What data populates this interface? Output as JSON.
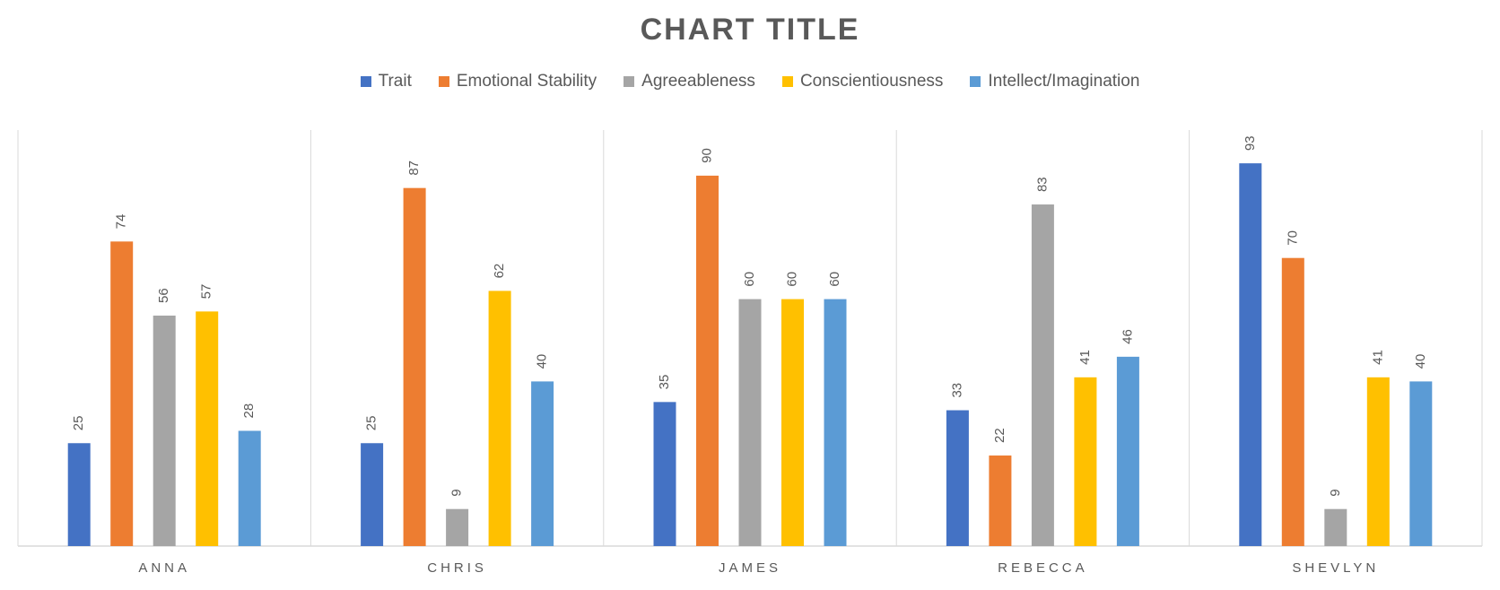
{
  "chart_data": {
    "type": "bar",
    "title": "CHART TITLE",
    "categories": [
      "ANNA",
      "CHRIS",
      "JAMES",
      "REBECCA",
      "SHEVLYN"
    ],
    "series": [
      {
        "name": "Trait",
        "color": "#4472C4",
        "values": [
          25,
          25,
          35,
          33,
          93
        ]
      },
      {
        "name": "Emotional Stability",
        "color": "#ED7D31",
        "values": [
          74,
          87,
          90,
          22,
          70
        ]
      },
      {
        "name": "Agreeableness",
        "color": "#A5A5A5",
        "values": [
          56,
          9,
          60,
          83,
          9
        ]
      },
      {
        "name": "Conscientiousness",
        "color": "#FFC000",
        "values": [
          57,
          62,
          60,
          41,
          41
        ]
      },
      {
        "name": "Intellect/Imagination",
        "color": "#5B9BD5",
        "values": [
          28,
          40,
          60,
          46,
          40
        ]
      }
    ],
    "ylim": [
      0,
      100
    ],
    "legend_position": "top",
    "gridlines": false,
    "data_labels": true
  }
}
